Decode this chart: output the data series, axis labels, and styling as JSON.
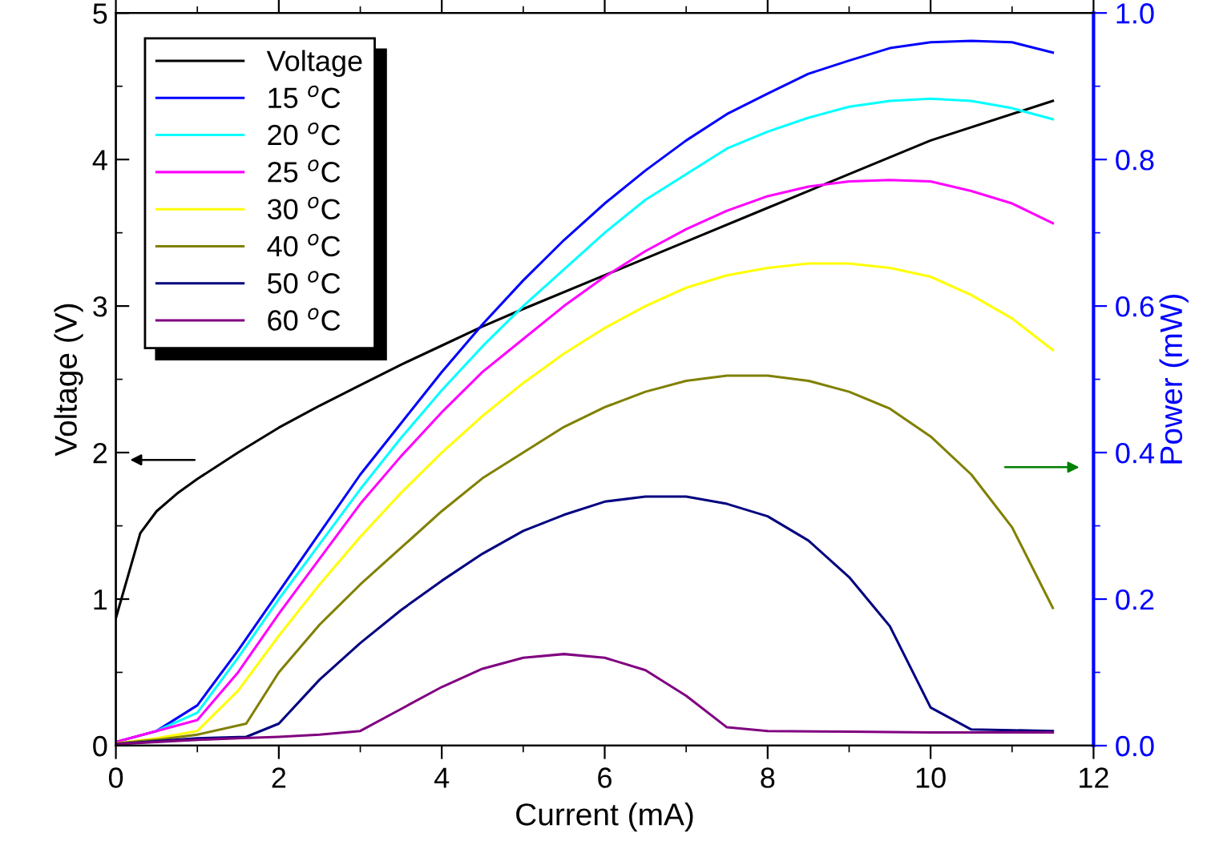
{
  "chart_data": {
    "type": "line",
    "xlabel": "Current (mA)",
    "ylabel": "Voltage (V)",
    "y2label": "Power (mW)",
    "xlim": [
      0,
      12
    ],
    "xticks": [
      0,
      2,
      4,
      6,
      8,
      10,
      12
    ],
    "ylim": [
      0,
      5
    ],
    "yticks": [
      0,
      1,
      2,
      3,
      4,
      5
    ],
    "y2lim": [
      0,
      1.0
    ],
    "y2ticks": [
      {
        "value": 0,
        "label": "0.0"
      },
      0.2,
      0.4,
      0.6,
      0.8,
      {
        "value": 1.0,
        "label": "1.0"
      }
    ],
    "grid": false,
    "legend": "top left",
    "marker": "none",
    "line_style": "solid",
    "series": [
      {
        "name": "Voltage",
        "color": "#000000",
        "axis": "y",
        "x": [
          0,
          0.3,
          0.5,
          0.75,
          1,
          1.5,
          2,
          2.5,
          3,
          3.5,
          4,
          4.5,
          5,
          6,
          7,
          8,
          9,
          10,
          11.5
        ],
        "values": [
          0.87,
          1.45,
          1.6,
          1.72,
          1.82,
          2.0,
          2.17,
          2.32,
          2.46,
          2.6,
          2.73,
          2.86,
          2.98,
          3.21,
          3.44,
          3.67,
          3.9,
          4.13,
          4.4
        ]
      },
      {
        "name": "15 $^{o}$C",
        "color": "#0000ff",
        "axis": "y2",
        "x": [
          0,
          0.5,
          1,
          1.5,
          2,
          2.5,
          3,
          3.5,
          4,
          4.5,
          5,
          5.5,
          6,
          6.5,
          7,
          7.5,
          8,
          8.5,
          9,
          9.5,
          10,
          10.5,
          11,
          11.5
        ],
        "values": [
          0.005,
          0.02,
          0.055,
          0.13,
          0.21,
          0.29,
          0.37,
          0.44,
          0.51,
          0.575,
          0.635,
          0.69,
          0.74,
          0.785,
          0.826,
          0.862,
          0.89,
          0.917,
          0.935,
          0.952,
          0.96,
          0.962,
          0.96,
          0.946
        ]
      },
      {
        "name": "20 $^{o}$C",
        "color": "#00ffff",
        "axis": "y2",
        "x": [
          0.5,
          1,
          1.5,
          2,
          2.5,
          3,
          3.5,
          4,
          4.5,
          5,
          5.5,
          6,
          6.5,
          7,
          7.5,
          8,
          8.5,
          9,
          9.5,
          10,
          10.5,
          11,
          11.5
        ],
        "values": [
          0.02,
          0.045,
          0.12,
          0.2,
          0.275,
          0.35,
          0.42,
          0.485,
          0.545,
          0.6,
          0.65,
          0.7,
          0.745,
          0.78,
          0.815,
          0.838,
          0.857,
          0.872,
          0.88,
          0.883,
          0.88,
          0.87,
          0.855
        ]
      },
      {
        "name": "25 $^{o}$C",
        "color": "#ff00ff",
        "axis": "y2",
        "x": [
          0,
          0.5,
          1,
          1.5,
          2,
          2.5,
          3,
          3.5,
          4,
          4.5,
          5,
          5.5,
          6,
          6.5,
          7,
          7.5,
          8,
          8.5,
          9,
          9.5,
          10,
          10.5,
          11,
          11.5
        ],
        "values": [
          0.005,
          0.02,
          0.035,
          0.1,
          0.18,
          0.255,
          0.33,
          0.395,
          0.455,
          0.51,
          0.555,
          0.6,
          0.64,
          0.675,
          0.705,
          0.73,
          0.75,
          0.763,
          0.77,
          0.772,
          0.77,
          0.757,
          0.74,
          0.713
        ]
      },
      {
        "name": "30 $^{o}$C",
        "color": "#ffff00",
        "axis": "y2",
        "x": [
          0,
          0.5,
          1,
          1.5,
          2,
          2.5,
          3,
          3.5,
          4,
          4.5,
          5,
          5.5,
          6,
          6.5,
          7,
          7.5,
          8,
          8.5,
          9,
          9.5,
          10,
          10.5,
          11,
          11.5
        ],
        "values": [
          0.003,
          0.01,
          0.02,
          0.075,
          0.15,
          0.22,
          0.285,
          0.345,
          0.4,
          0.45,
          0.495,
          0.535,
          0.57,
          0.6,
          0.625,
          0.642,
          0.652,
          0.658,
          0.658,
          0.652,
          0.64,
          0.615,
          0.583,
          0.54
        ]
      },
      {
        "name": "40 $^{o}$C",
        "color": "#808000",
        "axis": "y2",
        "x": [
          0,
          0.5,
          1,
          1.6,
          2,
          2.5,
          3,
          3.5,
          4,
          4.5,
          5,
          5.5,
          6,
          6.5,
          7,
          7.5,
          8,
          8.5,
          9,
          9.5,
          10,
          10.5,
          11,
          11.5
        ],
        "values": [
          0.003,
          0.008,
          0.015,
          0.03,
          0.1,
          0.165,
          0.22,
          0.27,
          0.32,
          0.365,
          0.4,
          0.435,
          0.462,
          0.483,
          0.498,
          0.505,
          0.505,
          0.498,
          0.483,
          0.46,
          0.422,
          0.37,
          0.298,
          0.188
        ]
      },
      {
        "name": "50 $^{o}$C",
        "color": "#000080",
        "axis": "y2",
        "x": [
          0,
          1,
          1.6,
          2,
          2.5,
          3,
          3.5,
          4,
          4.5,
          5,
          5.5,
          6,
          6.5,
          7,
          7.5,
          8,
          8.5,
          9,
          9.5,
          10,
          10.5,
          11,
          11.5
        ],
        "values": [
          0.002,
          0.01,
          0.012,
          0.03,
          0.09,
          0.14,
          0.185,
          0.225,
          0.262,
          0.293,
          0.315,
          0.333,
          0.34,
          0.34,
          0.33,
          0.313,
          0.28,
          0.23,
          0.163,
          0.052,
          0.022,
          0.021,
          0.02
        ]
      },
      {
        "name": "60 $^{o}$C",
        "color": "#800080",
        "axis": "y2",
        "x": [
          0,
          1,
          1.5,
          2,
          2.5,
          3,
          3.5,
          4,
          4.5,
          5,
          5.5,
          6,
          6.5,
          7,
          7.5,
          8,
          9,
          10,
          11,
          11.5
        ],
        "values": [
          0.002,
          0.008,
          0.01,
          0.012,
          0.015,
          0.02,
          0.05,
          0.08,
          0.105,
          0.12,
          0.125,
          0.12,
          0.103,
          0.068,
          0.025,
          0.02,
          0.019,
          0.018,
          0.018,
          0.018
        ]
      }
    ]
  }
}
